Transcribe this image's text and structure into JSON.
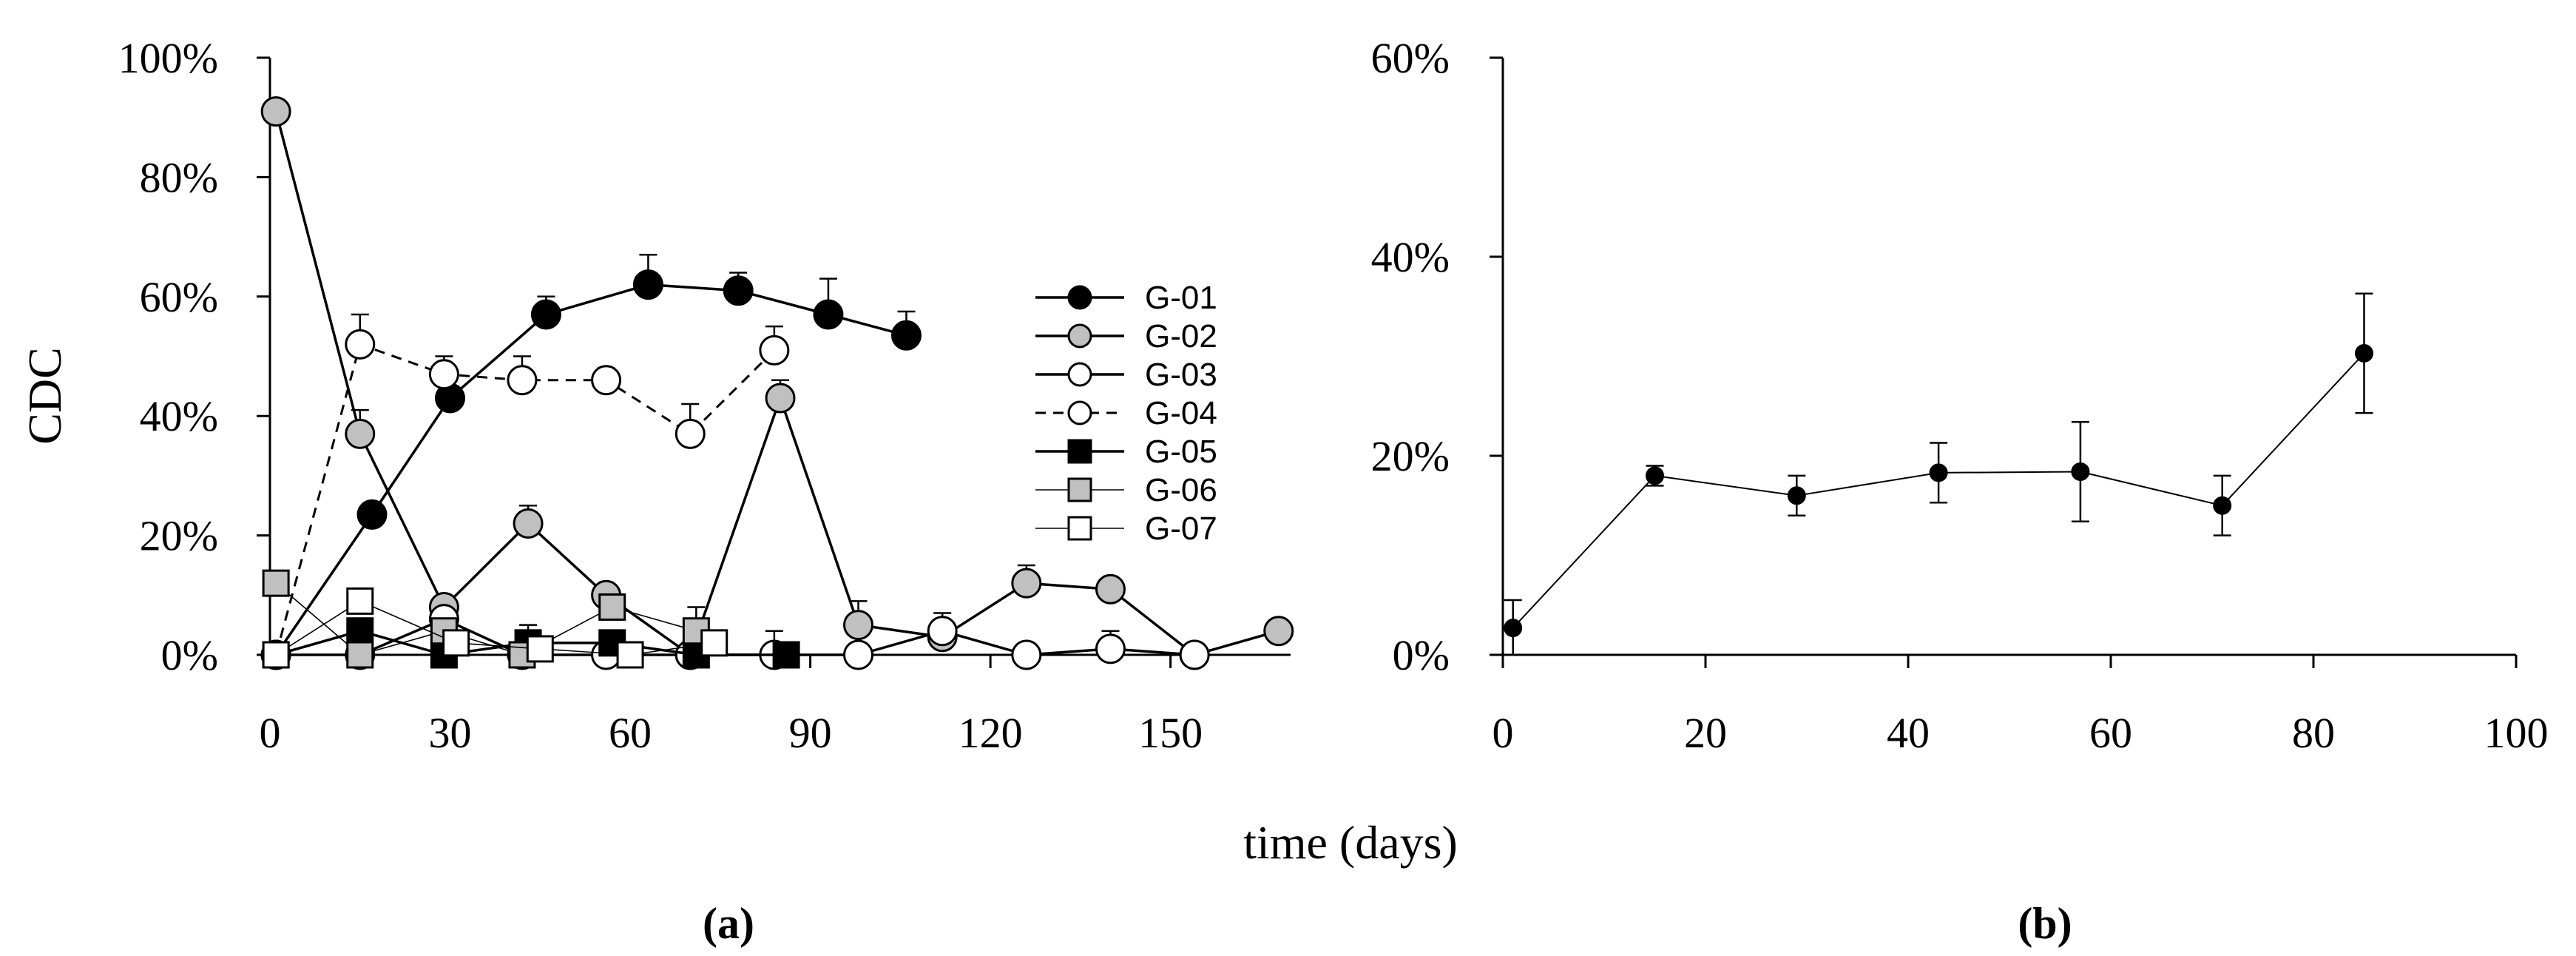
{
  "figure": {
    "shared_xlabel": "time (days)",
    "panel_labels": [
      "(a)",
      "(b)"
    ]
  },
  "chart_data": [
    {
      "id": "a",
      "type": "line",
      "title": "",
      "xlabel": "time (days)",
      "ylabel": "CDC",
      "xlim": [
        0,
        170
      ],
      "ylim": [
        0,
        100
      ],
      "xticks": [
        0,
        30,
        60,
        90,
        120,
        150
      ],
      "yticks": [
        0,
        20,
        40,
        60,
        80,
        100
      ],
      "ytick_labels": [
        "0%",
        "20%",
        "40%",
        "60%",
        "80%",
        "100%"
      ],
      "legend_position": "right",
      "series": [
        {
          "name": "G-01",
          "marker": "circle",
          "fill": "#000000",
          "line_style": "solid",
          "line_width": 3.5,
          "x": [
            1,
            17,
            30,
            46,
            63,
            78,
            93,
            106
          ],
          "y": [
            0,
            23.5,
            43,
            57,
            62,
            61,
            57,
            53.5
          ],
          "err": [
            0,
            0,
            0,
            3,
            5,
            3,
            6,
            4
          ]
        },
        {
          "name": "G-02",
          "marker": "circle",
          "fill": "#c0c0c0",
          "line_style": "solid",
          "line_width": 3.5,
          "x": [
            1,
            15,
            29,
            43,
            56,
            70,
            85,
            98,
            112,
            126,
            140,
            154,
            168
          ],
          "y": [
            91,
            37,
            8,
            22,
            10,
            0,
            43,
            5,
            3,
            12,
            11,
            0,
            4
          ],
          "err": [
            0,
            4,
            0,
            3,
            0,
            0,
            3,
            4,
            0,
            3,
            0,
            0,
            0
          ]
        },
        {
          "name": "G-03",
          "marker": "circle",
          "fill": "#ffffff",
          "line_style": "solid",
          "line_width": 3.5,
          "x": [
            1,
            15,
            29,
            42,
            56,
            70,
            84,
            98,
            112,
            126,
            140,
            154
          ],
          "y": [
            0,
            0,
            6,
            0,
            0,
            0,
            0,
            0,
            4,
            0,
            1,
            0
          ],
          "err": [
            0,
            0,
            0,
            0,
            0,
            0,
            4,
            0,
            3,
            0,
            3,
            0
          ]
        },
        {
          "name": "G-04",
          "marker": "circle",
          "fill": "#ffffff",
          "line_style": "dashed",
          "line_width": 3,
          "x": [
            1,
            15,
            29,
            42,
            56,
            70,
            84
          ],
          "y": [
            0,
            52,
            47,
            46,
            46,
            37,
            51
          ],
          "err": [
            0,
            5,
            3,
            4,
            2,
            5,
            4
          ]
        },
        {
          "name": "G-05",
          "marker": "square",
          "fill": "#000000",
          "line_style": "solid",
          "line_width": 3.5,
          "x": [
            1,
            15,
            29,
            43,
            57,
            71,
            86
          ],
          "y": [
            0,
            4,
            0,
            2,
            2,
            0,
            0
          ],
          "err": [
            0,
            0,
            0,
            3,
            2,
            0,
            2
          ]
        },
        {
          "name": "G-06",
          "marker": "square",
          "fill": "#c0c0c0",
          "line_style": "solid",
          "line_width": 1.6,
          "x": [
            1,
            15,
            29,
            42,
            57,
            71
          ],
          "y": [
            12,
            0,
            4,
            0,
            8,
            4
          ],
          "err": [
            0,
            0,
            0,
            0,
            0,
            4
          ]
        },
        {
          "name": "G-07",
          "marker": "square",
          "fill": "#ffffff",
          "line_style": "solid",
          "line_width": 1.6,
          "x": [
            1,
            15,
            31,
            45,
            60,
            74
          ],
          "y": [
            0,
            9,
            2,
            1,
            0,
            2
          ],
          "err": [
            0,
            0,
            0,
            0,
            0,
            0
          ]
        }
      ]
    },
    {
      "id": "b",
      "type": "line",
      "title": "",
      "xlabel": "time (days)",
      "ylabel": "",
      "xlim": [
        0,
        100
      ],
      "ylim": [
        0,
        60
      ],
      "xticks": [
        0,
        20,
        40,
        60,
        80,
        100
      ],
      "yticks": [
        0,
        20,
        40,
        60
      ],
      "ytick_labels": [
        "0%",
        "20%",
        "40%",
        "60%"
      ],
      "series": [
        {
          "name": "",
          "marker": "circle",
          "fill": "#000000",
          "line_style": "solid",
          "line_width": 2,
          "x": [
            1,
            15,
            29,
            43,
            57,
            71,
            85
          ],
          "y": [
            2.7,
            18,
            16,
            18.3,
            18.4,
            15,
            30.3
          ],
          "err": [
            2.8,
            1,
            2,
            3,
            5,
            3,
            6
          ]
        }
      ]
    }
  ]
}
